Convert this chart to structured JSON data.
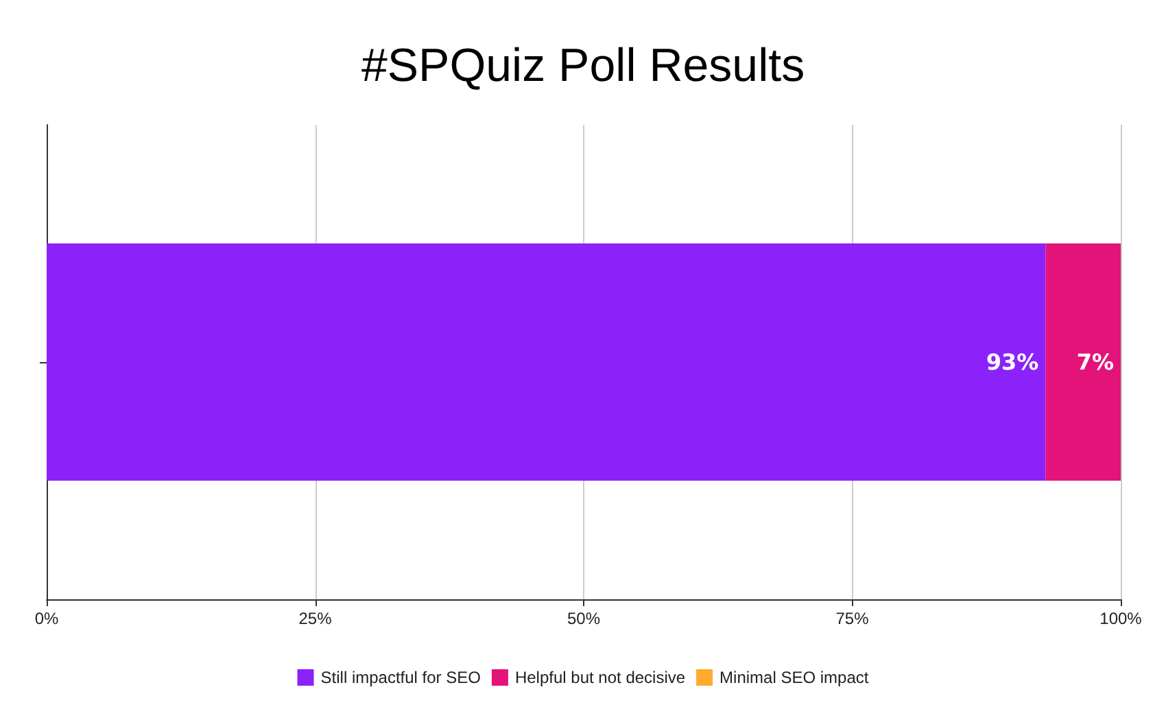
{
  "chart_data": {
    "type": "bar",
    "title": "#SPQuiz Poll Results",
    "orientation": "horizontal",
    "stacked": true,
    "categories": [
      null
    ],
    "series": [
      {
        "name": "Still impactful for SEO",
        "color": "#8b22fa",
        "values": [
          93
        ],
        "value_labels": [
          "93%"
        ]
      },
      {
        "name": "Helpful but not decisive",
        "color": "#e4137a",
        "values": [
          7
        ],
        "value_labels": [
          "7%"
        ]
      },
      {
        "name": "Minimal SEO impact",
        "color": "#ffab2b",
        "values": [
          0
        ],
        "value_labels": [
          null
        ]
      }
    ],
    "xlim": [
      0,
      100
    ],
    "xticks": [
      {
        "value": 0,
        "label": "0%"
      },
      {
        "value": 25,
        "label": "25%"
      },
      {
        "value": 50,
        "label": "50%"
      },
      {
        "value": 75,
        "label": "75%"
      },
      {
        "value": 100,
        "label": "100%"
      }
    ],
    "grid": "x",
    "legend": "bottom"
  }
}
